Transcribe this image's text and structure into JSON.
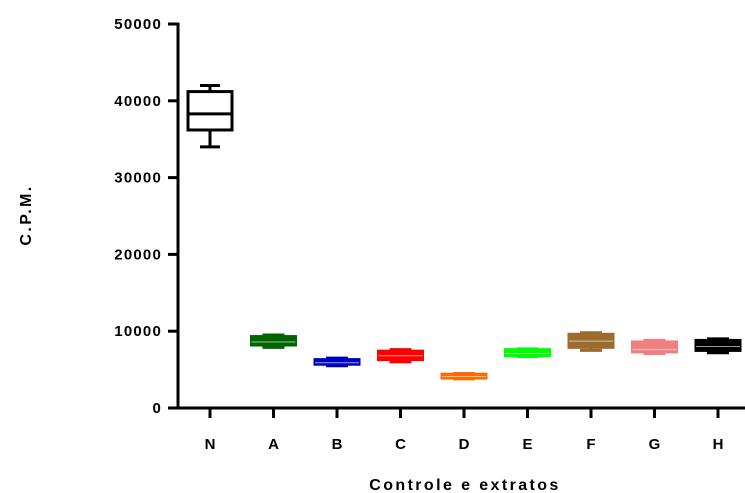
{
  "chart_data": {
    "type": "box",
    "xlabel": "Controle e extratos",
    "ylabel": "C.P.M.",
    "ylim": [
      0,
      50000
    ],
    "yticks": [
      0,
      10000,
      20000,
      30000,
      40000,
      50000
    ],
    "ytick_labels": [
      "0",
      "10000",
      "20000",
      "30000",
      "40000",
      "50000"
    ],
    "categories": [
      "N",
      "A",
      "B",
      "C",
      "D",
      "E",
      "F",
      "G",
      "H"
    ],
    "grid": false,
    "series": [
      {
        "category": "N",
        "min": 34000,
        "q1": 36200,
        "median": 38300,
        "q3": 41200,
        "max": 42000,
        "color": "#000000",
        "filled": false
      },
      {
        "category": "A",
        "min": 7900,
        "q1": 8200,
        "median": 8600,
        "q3": 9300,
        "max": 9500,
        "color": "#006400",
        "filled": true
      },
      {
        "category": "B",
        "min": 5500,
        "q1": 5700,
        "median": 5900,
        "q3": 6300,
        "max": 6500,
        "color": "#0000c0",
        "filled": true
      },
      {
        "category": "C",
        "min": 6000,
        "q1": 6300,
        "median": 6800,
        "q3": 7400,
        "max": 7600,
        "color": "#ff0000",
        "filled": true
      },
      {
        "category": "D",
        "min": 3800,
        "q1": 3900,
        "median": 4100,
        "q3": 4400,
        "max": 4500,
        "color": "#ff6a00",
        "filled": true
      },
      {
        "category": "E",
        "min": 6700,
        "q1": 6800,
        "median": 7100,
        "q3": 7600,
        "max": 7700,
        "color": "#00ff00",
        "filled": true
      },
      {
        "category": "F",
        "min": 7500,
        "q1": 7900,
        "median": 8700,
        "q3": 9600,
        "max": 9800,
        "color": "#9b6c2e",
        "filled": true
      },
      {
        "category": "G",
        "min": 7100,
        "q1": 7300,
        "median": 7600,
        "q3": 8600,
        "max": 8800,
        "color": "#f08080",
        "filled": true
      },
      {
        "category": "H",
        "min": 7200,
        "q1": 7500,
        "median": 8000,
        "q3": 8800,
        "max": 9000,
        "color": "#000000",
        "filled": true
      }
    ]
  }
}
